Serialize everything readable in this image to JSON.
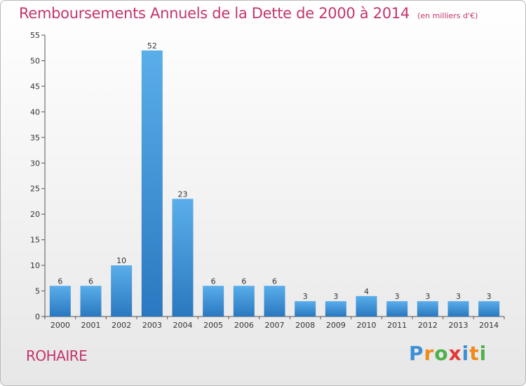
{
  "chart_data": {
    "type": "bar",
    "title": "Remboursements Annuels de la Dette de 2000 à 2014",
    "unit_note": "(en milliers d'€)",
    "categories": [
      "2000",
      "2001",
      "2002",
      "2003",
      "2004",
      "2005",
      "2006",
      "2007",
      "2008",
      "2009",
      "2010",
      "2011",
      "2012",
      "2013",
      "2014"
    ],
    "values": [
      6,
      6,
      10,
      52,
      23,
      6,
      6,
      6,
      3,
      3,
      4,
      3,
      3,
      3,
      3
    ],
    "ylim": [
      0,
      55
    ],
    "yticks": [
      0,
      5,
      10,
      15,
      20,
      25,
      30,
      35,
      40,
      45,
      50,
      55
    ],
    "grid": false,
    "bar_color_top": "#5aaeea",
    "bar_color_bottom": "#2a78c0"
  },
  "footer": {
    "commune": "ROHAIRE",
    "logo": {
      "letters": [
        "P",
        "r",
        "o",
        "x",
        "i",
        "t",
        "i"
      ],
      "colors": [
        "#3d8fd6",
        "#f08a1c",
        "#4fb04a",
        "#e03a3a",
        "#3d8fd6",
        "#f08a1c",
        "#4fb04a"
      ]
    }
  }
}
